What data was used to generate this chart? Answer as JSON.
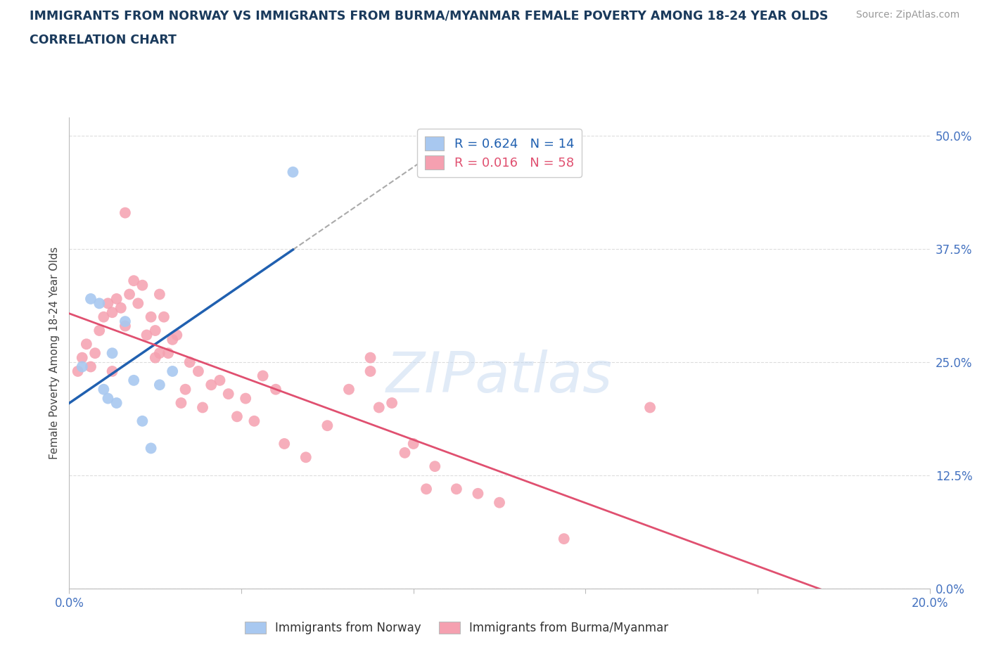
{
  "title_line1": "IMMIGRANTS FROM NORWAY VS IMMIGRANTS FROM BURMA/MYANMAR FEMALE POVERTY AMONG 18-24 YEAR OLDS",
  "title_line2": "CORRELATION CHART",
  "source_text": "Source: ZipAtlas.com",
  "ylabel": "Female Poverty Among 18-24 Year Olds",
  "ytick_values": [
    0.0,
    12.5,
    25.0,
    37.5,
    50.0
  ],
  "xlim": [
    0.0,
    20.0
  ],
  "ylim": [
    0.0,
    52.0
  ],
  "norway_R": 0.624,
  "norway_N": 14,
  "burma_R": 0.016,
  "burma_N": 58,
  "norway_color": "#a8c8f0",
  "burma_color": "#f5a0b0",
  "norway_line_color": "#2060b0",
  "burma_line_color": "#e05070",
  "norway_points_x": [
    0.3,
    0.5,
    0.7,
    0.8,
    0.9,
    1.0,
    1.1,
    1.3,
    1.5,
    1.7,
    1.9,
    2.1,
    2.4,
    5.2
  ],
  "norway_points_y": [
    24.5,
    32.0,
    31.5,
    22.0,
    21.0,
    26.0,
    20.5,
    29.5,
    23.0,
    18.5,
    15.5,
    22.5,
    24.0,
    46.0
  ],
  "burma_points_x": [
    0.2,
    0.3,
    0.4,
    0.5,
    0.6,
    0.7,
    0.8,
    0.9,
    1.0,
    1.0,
    1.1,
    1.2,
    1.3,
    1.3,
    1.4,
    1.5,
    1.6,
    1.7,
    1.8,
    1.9,
    2.0,
    2.0,
    2.1,
    2.1,
    2.2,
    2.3,
    2.4,
    2.5,
    2.6,
    2.7,
    2.8,
    3.0,
    3.1,
    3.3,
    3.5,
    3.7,
    3.9,
    4.1,
    4.3,
    4.5,
    4.8,
    5.0,
    5.5,
    6.0,
    6.5,
    7.0,
    7.0,
    7.2,
    7.5,
    7.8,
    8.0,
    8.3,
    8.5,
    9.0,
    9.5,
    10.0,
    11.5,
    13.5
  ],
  "burma_points_y": [
    24.0,
    25.5,
    27.0,
    24.5,
    26.0,
    28.5,
    30.0,
    31.5,
    24.0,
    30.5,
    32.0,
    31.0,
    29.0,
    41.5,
    32.5,
    34.0,
    31.5,
    33.5,
    28.0,
    30.0,
    28.5,
    25.5,
    26.0,
    32.5,
    30.0,
    26.0,
    27.5,
    28.0,
    20.5,
    22.0,
    25.0,
    24.0,
    20.0,
    22.5,
    23.0,
    21.5,
    19.0,
    21.0,
    18.5,
    23.5,
    22.0,
    16.0,
    14.5,
    18.0,
    22.0,
    24.0,
    25.5,
    20.0,
    20.5,
    15.0,
    16.0,
    11.0,
    13.5,
    11.0,
    10.5,
    9.5,
    5.5,
    20.0
  ],
  "background_color": "#ffffff",
  "grid_color": "#dddddd",
  "title_color": "#1a3a5c",
  "axis_label_color": "#4472c0",
  "watermark_text": "ZIPatlas",
  "legend_norway_label": "Immigrants from Norway",
  "legend_burma_label": "Immigrants from Burma/Myanmar",
  "norway_line_x_solid_end": 2.4,
  "norway_line_x_dash_start": 2.4,
  "xtick_positions": [
    0.0,
    4.0,
    8.0,
    12.0,
    16.0,
    20.0
  ]
}
